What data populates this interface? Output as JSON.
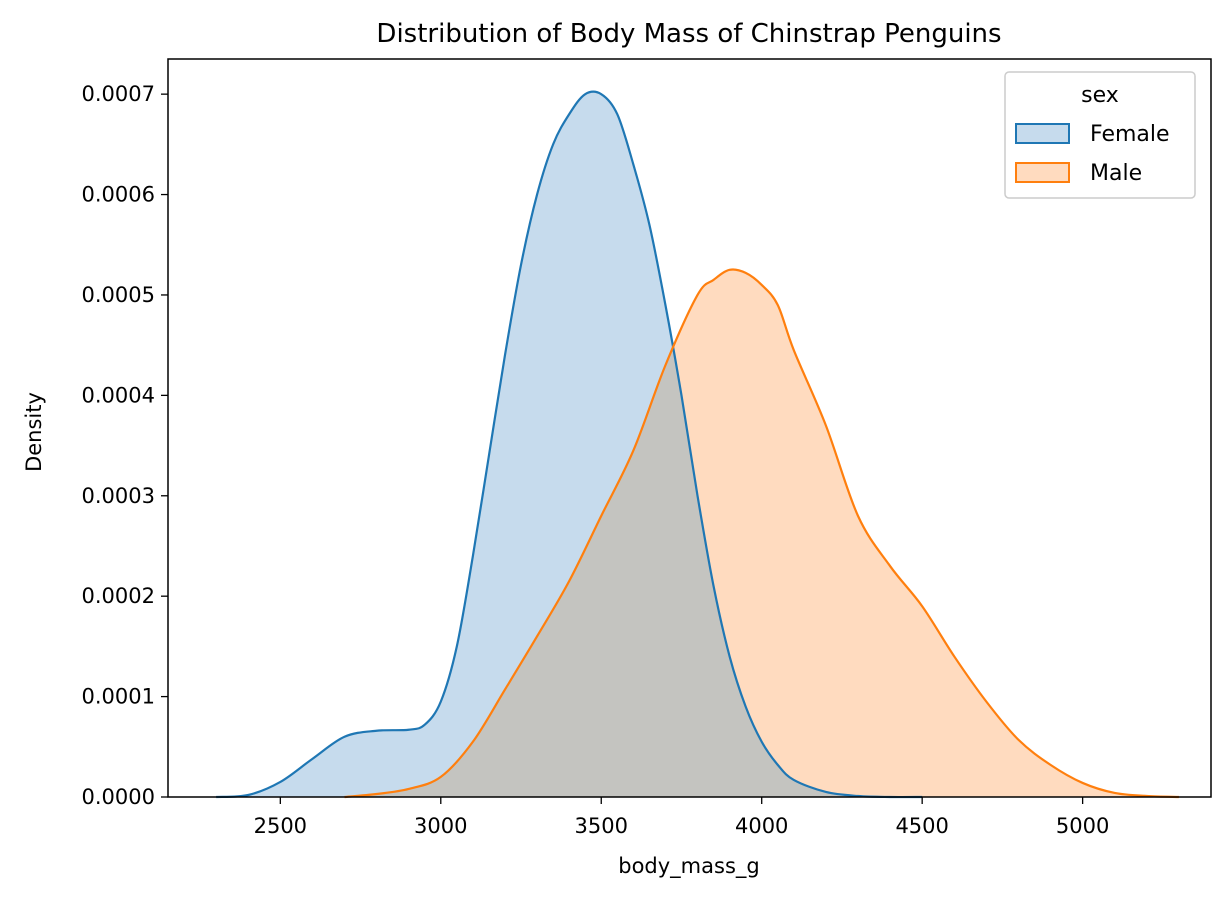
{
  "chart_data": {
    "type": "area",
    "title": "Distribution of Body Mass of Chinstrap Penguins",
    "xlabel": "body_mass_g",
    "ylabel": "Density",
    "xlim": [
      2150,
      5400
    ],
    "ylim": [
      0,
      0.000735
    ],
    "x_ticks": [
      2500,
      3000,
      3500,
      4000,
      4500,
      5000
    ],
    "y_ticks": [
      0,
      0.0001,
      0.0002,
      0.0003,
      0.0004,
      0.0005,
      0.0006,
      0.0007
    ],
    "x_tick_labels": [
      "2500",
      "3000",
      "3500",
      "4000",
      "4500",
      "5000"
    ],
    "y_tick_labels": [
      "0.0000",
      "0.0001",
      "0.0002",
      "0.0003",
      "0.0004",
      "0.0005",
      "0.0006",
      "0.0007"
    ],
    "grid": false,
    "legend": {
      "title": "sex",
      "placement": "top-right"
    },
    "series": [
      {
        "name": "Female",
        "color": "#1f77b4",
        "fill": "#c6dbed",
        "x": [
          2300,
          2400,
          2500,
          2600,
          2700,
          2800,
          2900,
          2950,
          3000,
          3050,
          3100,
          3150,
          3200,
          3250,
          3300,
          3350,
          3400,
          3450,
          3500,
          3550,
          3600,
          3650,
          3700,
          3750,
          3800,
          3850,
          3900,
          3950,
          4000,
          4050,
          4100,
          4200,
          4300,
          4400,
          4500
        ],
        "y": [
          0.0,
          2e-06,
          1.5e-05,
          3.8e-05,
          6e-05,
          6.6e-05,
          6.7e-05,
          7.2e-05,
          9.5e-05,
          0.00015,
          0.00024,
          0.00034,
          0.00044,
          0.00053,
          0.0006,
          0.00065,
          0.00068,
          0.0007,
          0.0007,
          0.00068,
          0.00063,
          0.00057,
          0.00049,
          0.0004,
          0.0003,
          0.00021,
          0.00014,
          9e-05,
          5.5e-05,
          3.2e-05,
          1.7e-05,
          5e-06,
          1e-06,
          0.0,
          0.0
        ]
      },
      {
        "name": "Male",
        "color": "#ff7f0e",
        "fill": "#ffdbbf",
        "x": [
          2700,
          2800,
          2900,
          3000,
          3100,
          3200,
          3300,
          3400,
          3500,
          3600,
          3700,
          3800,
          3850,
          3900,
          3950,
          4000,
          4050,
          4100,
          4200,
          4300,
          4400,
          4500,
          4600,
          4700,
          4800,
          4900,
          5000,
          5100,
          5200,
          5300
        ],
        "y": [
          0.0,
          3e-06,
          8e-06,
          2e-05,
          5.5e-05,
          0.000107,
          0.00016,
          0.000215,
          0.00028,
          0.000345,
          0.00043,
          0.0005,
          0.000515,
          0.000525,
          0.000522,
          0.00051,
          0.00049,
          0.000445,
          0.00037,
          0.00028,
          0.00023,
          0.00019,
          0.00014,
          9.5e-05,
          5.7e-05,
          3.2e-05,
          1.4e-05,
          4e-06,
          1e-06,
          0.0
        ]
      }
    ],
    "overlap_color": "#c4c4c0"
  }
}
